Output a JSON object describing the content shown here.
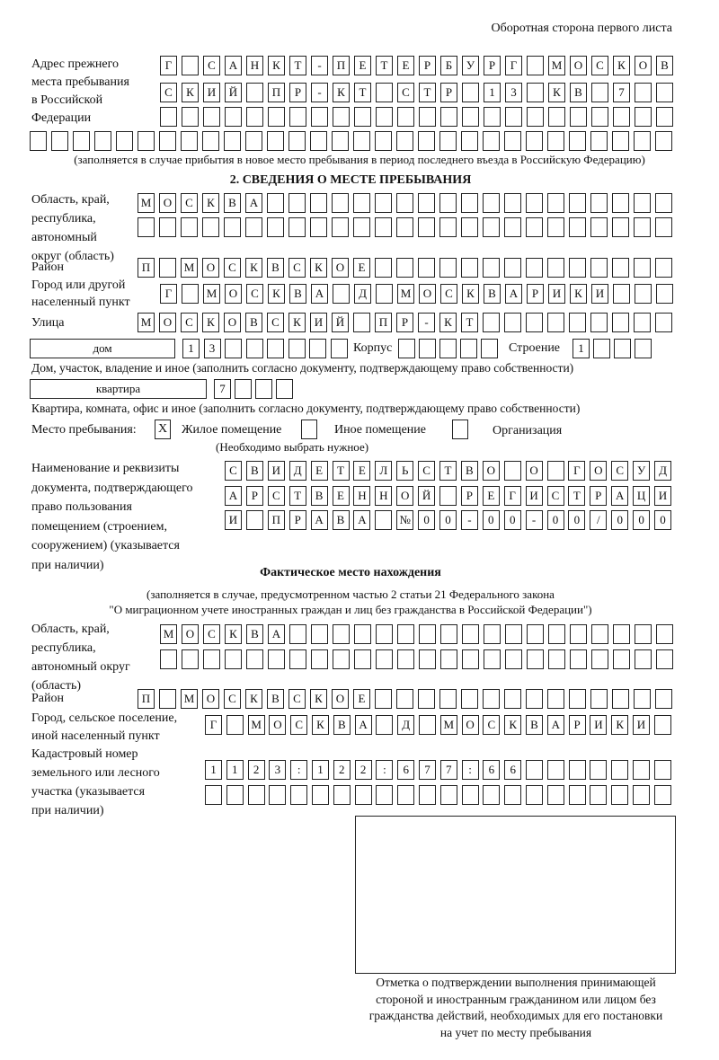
{
  "header": {
    "page_side": "Оборотная сторона первого листа"
  },
  "previous_address": {
    "label": [
      "Адрес прежнего",
      "места пребывания",
      "в Российской",
      "Федерации"
    ],
    "rows": [
      [
        "Г",
        "",
        "С",
        "А",
        "Н",
        "К",
        "Т",
        "-",
        "П",
        "Е",
        "Т",
        "Е",
        "Р",
        "Б",
        "У",
        "Р",
        "Г",
        "",
        "М",
        "О",
        "С",
        "К",
        "О",
        "В"
      ],
      [
        "С",
        "К",
        "И",
        "Й",
        "",
        "П",
        "Р",
        "-",
        "К",
        "Т",
        "",
        "С",
        "Т",
        "Р",
        "",
        "1",
        "3",
        "",
        "К",
        "В",
        "",
        "7",
        "",
        ""
      ],
      [
        "",
        "",
        "",
        "",
        "",
        "",
        "",
        "",
        "",
        "",
        "",
        "",
        "",
        "",
        "",
        "",
        "",
        "",
        "",
        "",
        "",
        "",
        "",
        ""
      ],
      [
        "",
        "",
        "",
        "",
        "",
        "",
        "",
        "",
        "",
        "",
        "",
        "",
        "",
        "",
        "",
        "",
        "",
        "",
        "",
        "",
        "",
        "",
        "",
        "",
        "",
        "",
        "",
        "",
        "",
        ""
      ]
    ],
    "note": "(заполняется в случае прибытия в новое место пребывания в период последнего въезда в Российскую Федерацию)"
  },
  "section2": {
    "title": "2. СВЕДЕНИЯ О МЕСТЕ ПРЕБЫВАНИЯ",
    "region_label": [
      "Область, край,",
      "республика,",
      "автономный",
      "округ (область)"
    ],
    "region_rows": [
      [
        "М",
        "О",
        "С",
        "К",
        "В",
        "А",
        "",
        "",
        "",
        "",
        "",
        "",
        "",
        "",
        "",
        "",
        "",
        "",
        "",
        "",
        "",
        "",
        "",
        "",
        ""
      ],
      [
        "",
        "",
        "",
        "",
        "",
        "",
        "",
        "",
        "",
        "",
        "",
        "",
        "",
        "",
        "",
        "",
        "",
        "",
        "",
        "",
        "",
        "",
        "",
        "",
        ""
      ]
    ],
    "district_label": "Район",
    "district_row": [
      "П",
      "",
      "М",
      "О",
      "С",
      "К",
      "В",
      "С",
      "К",
      "О",
      "Е",
      "",
      "",
      "",
      "",
      "",
      "",
      "",
      "",
      "",
      "",
      "",
      "",
      "",
      ""
    ],
    "city_label": [
      "Город или другой",
      "населенный пункт"
    ],
    "city_row": [
      "Г",
      "",
      "М",
      "О",
      "С",
      "К",
      "В",
      "А",
      "",
      "Д",
      "",
      "М",
      "О",
      "С",
      "К",
      "В",
      "А",
      "Р",
      "И",
      "К",
      "И",
      "",
      "",
      ""
    ],
    "street_label": "Улица",
    "street_row": [
      "М",
      "О",
      "С",
      "К",
      "О",
      "В",
      "С",
      "К",
      "И",
      "Й",
      "",
      "П",
      "Р",
      "-",
      "К",
      "Т",
      "",
      "",
      "",
      "",
      "",
      "",
      "",
      "",
      ""
    ],
    "house_type": "дом",
    "house_row": [
      "1",
      "3",
      "",
      "",
      "",
      "",
      "",
      ""
    ],
    "korpus_label": "Корпус",
    "korpus_row": [
      "",
      "",
      "",
      "",
      ""
    ],
    "building_label": "Строение",
    "building_row": [
      "1",
      "",
      "",
      ""
    ],
    "house_caption": "Дом, участок, владение и иное (заполнить согласно документу, подтверждающему право собственности)",
    "apt_type": "квартира",
    "apt_row": [
      "7",
      "",
      "",
      ""
    ],
    "apt_caption": "Квартира, комната, офис и иное (заполнить согласно документу, подтверждающему право собственности)",
    "stay_place": {
      "label": "Место пребывания:",
      "options": [
        {
          "label": "Жилое помещение",
          "checked": true,
          "mark": "X"
        },
        {
          "label": "Иное помещение",
          "checked": false,
          "mark": ""
        },
        {
          "label": "Организация",
          "checked": false,
          "mark": ""
        }
      ],
      "hint": "(Необходимо выбрать нужное)"
    },
    "document_label": [
      "Наименование и реквизиты",
      "документа, подтверждающего",
      "право пользования",
      "помещением (строением,",
      "сооружением) (указывается",
      "при наличии)"
    ],
    "document_rows": [
      [
        "С",
        "В",
        "И",
        "Д",
        "Е",
        "Т",
        "Е",
        "Л",
        "Ь",
        "С",
        "Т",
        "В",
        "О",
        "",
        "О",
        "",
        "Г",
        "О",
        "С",
        "У",
        "Д"
      ],
      [
        "А",
        "Р",
        "С",
        "Т",
        "В",
        "Е",
        "Н",
        "Н",
        "О",
        "Й",
        "",
        "Р",
        "Е",
        "Г",
        "И",
        "С",
        "Т",
        "Р",
        "А",
        "Ц",
        "И"
      ],
      [
        "И",
        "",
        "П",
        "Р",
        "А",
        "В",
        "А",
        "",
        "№",
        "0",
        "0",
        "-",
        "0",
        "0",
        "-",
        "0",
        "0",
        "/",
        "0",
        "0",
        "0"
      ]
    ]
  },
  "actual_location": {
    "title": "Фактическое место нахождения",
    "note": [
      "(заполняется в случае, предусмотренном частью 2 статьи 21 Федерального закона",
      "\"О миграционном учете иностранных граждан и лиц без гражданства в Российской Федерации\")"
    ],
    "region_label": [
      "Область, край,",
      "республика,",
      "автономный округ",
      "(область)"
    ],
    "region_rows": [
      [
        "М",
        "О",
        "С",
        "К",
        "В",
        "А",
        "",
        "",
        "",
        "",
        "",
        "",
        "",
        "",
        "",
        "",
        "",
        "",
        "",
        "",
        "",
        "",
        "",
        ""
      ],
      [
        "",
        "",
        "",
        "",
        "",
        "",
        "",
        "",
        "",
        "",
        "",
        "",
        "",
        "",
        "",
        "",
        "",
        "",
        "",
        "",
        "",
        "",
        "",
        ""
      ]
    ],
    "district_label": "Район",
    "district_row": [
      "П",
      "",
      "М",
      "О",
      "С",
      "К",
      "В",
      "С",
      "К",
      "О",
      "Е",
      "",
      "",
      "",
      "",
      "",
      "",
      "",
      "",
      "",
      "",
      "",
      "",
      "",
      ""
    ],
    "city_label": [
      "Город, сельское поселение,",
      "иной населенный пункт"
    ],
    "city_row": [
      "Г",
      "",
      "М",
      "О",
      "С",
      "К",
      "В",
      "А",
      "",
      "Д",
      "",
      "М",
      "О",
      "С",
      "К",
      "В",
      "А",
      "Р",
      "И",
      "К",
      "И",
      ""
    ],
    "cadastral_label": [
      "Кадастровый номер",
      "земельного или лесного",
      "участка (указывается",
      "при наличии)"
    ],
    "cadastral_rows": [
      [
        "1",
        "1",
        "2",
        "3",
        ":",
        "1",
        "2",
        "2",
        ":",
        "6",
        "7",
        "7",
        ":",
        "6",
        "6",
        "",
        "",
        "",
        "",
        "",
        "",
        ""
      ],
      [
        "",
        "",
        "",
        "",
        "",
        "",
        "",
        "",
        "",
        "",
        "",
        "",
        "",
        "",
        "",
        "",
        "",
        "",
        "",
        "",
        "",
        ""
      ]
    ]
  },
  "confirmation": {
    "caption": [
      "Отметка о подтверждении выполнения принимающей",
      "стороной и иностранным гражданином или лицом без",
      "гражданства действий, необходимых для его постановки",
      "на учет по месту пребывания"
    ]
  }
}
